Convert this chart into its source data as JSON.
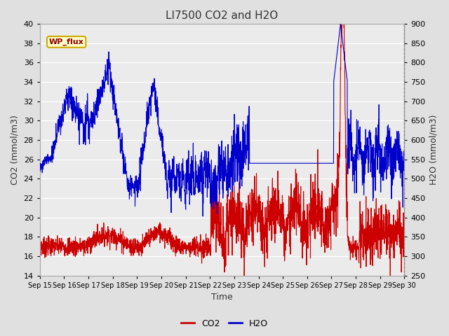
{
  "title": "LI7500 CO2 and H2O",
  "xlabel": "Time",
  "ylabel_left": "CO2 (mmol/m3)",
  "ylabel_right": "H2O (mmol/m3)",
  "ylim_left": [
    14,
    40
  ],
  "ylim_right": [
    250,
    900
  ],
  "yticks_left": [
    14,
    16,
    18,
    20,
    22,
    24,
    26,
    28,
    30,
    32,
    34,
    36,
    38,
    40
  ],
  "yticks_right": [
    250,
    300,
    350,
    400,
    450,
    500,
    550,
    600,
    650,
    700,
    750,
    800,
    850,
    900
  ],
  "xtick_labels": [
    "Sep 15",
    "Sep 16",
    "Sep 17",
    "Sep 18",
    "Sep 19",
    "Sep 20",
    "Sep 21",
    "Sep 22",
    "Sep 23",
    "Sep 24",
    "Sep 25",
    "Sep 26",
    "Sep 27",
    "Sep 28",
    "Sep 29",
    "Sep 30"
  ],
  "co2_color": "#cc0000",
  "h2o_color": "#0000cc",
  "annotation_text": "WP_flux",
  "annotation_bg": "#ffffcc",
  "annotation_border": "#ccaa00",
  "background_color": "#e0e0e0",
  "plot_bg_color": "#ebebeb",
  "title_color": "#333333",
  "grid_color": "#ffffff",
  "legend_co2_color": "#cc0000",
  "legend_h2o_color": "#0000cc",
  "figsize": [
    6.4,
    4.8
  ],
  "dpi": 100
}
